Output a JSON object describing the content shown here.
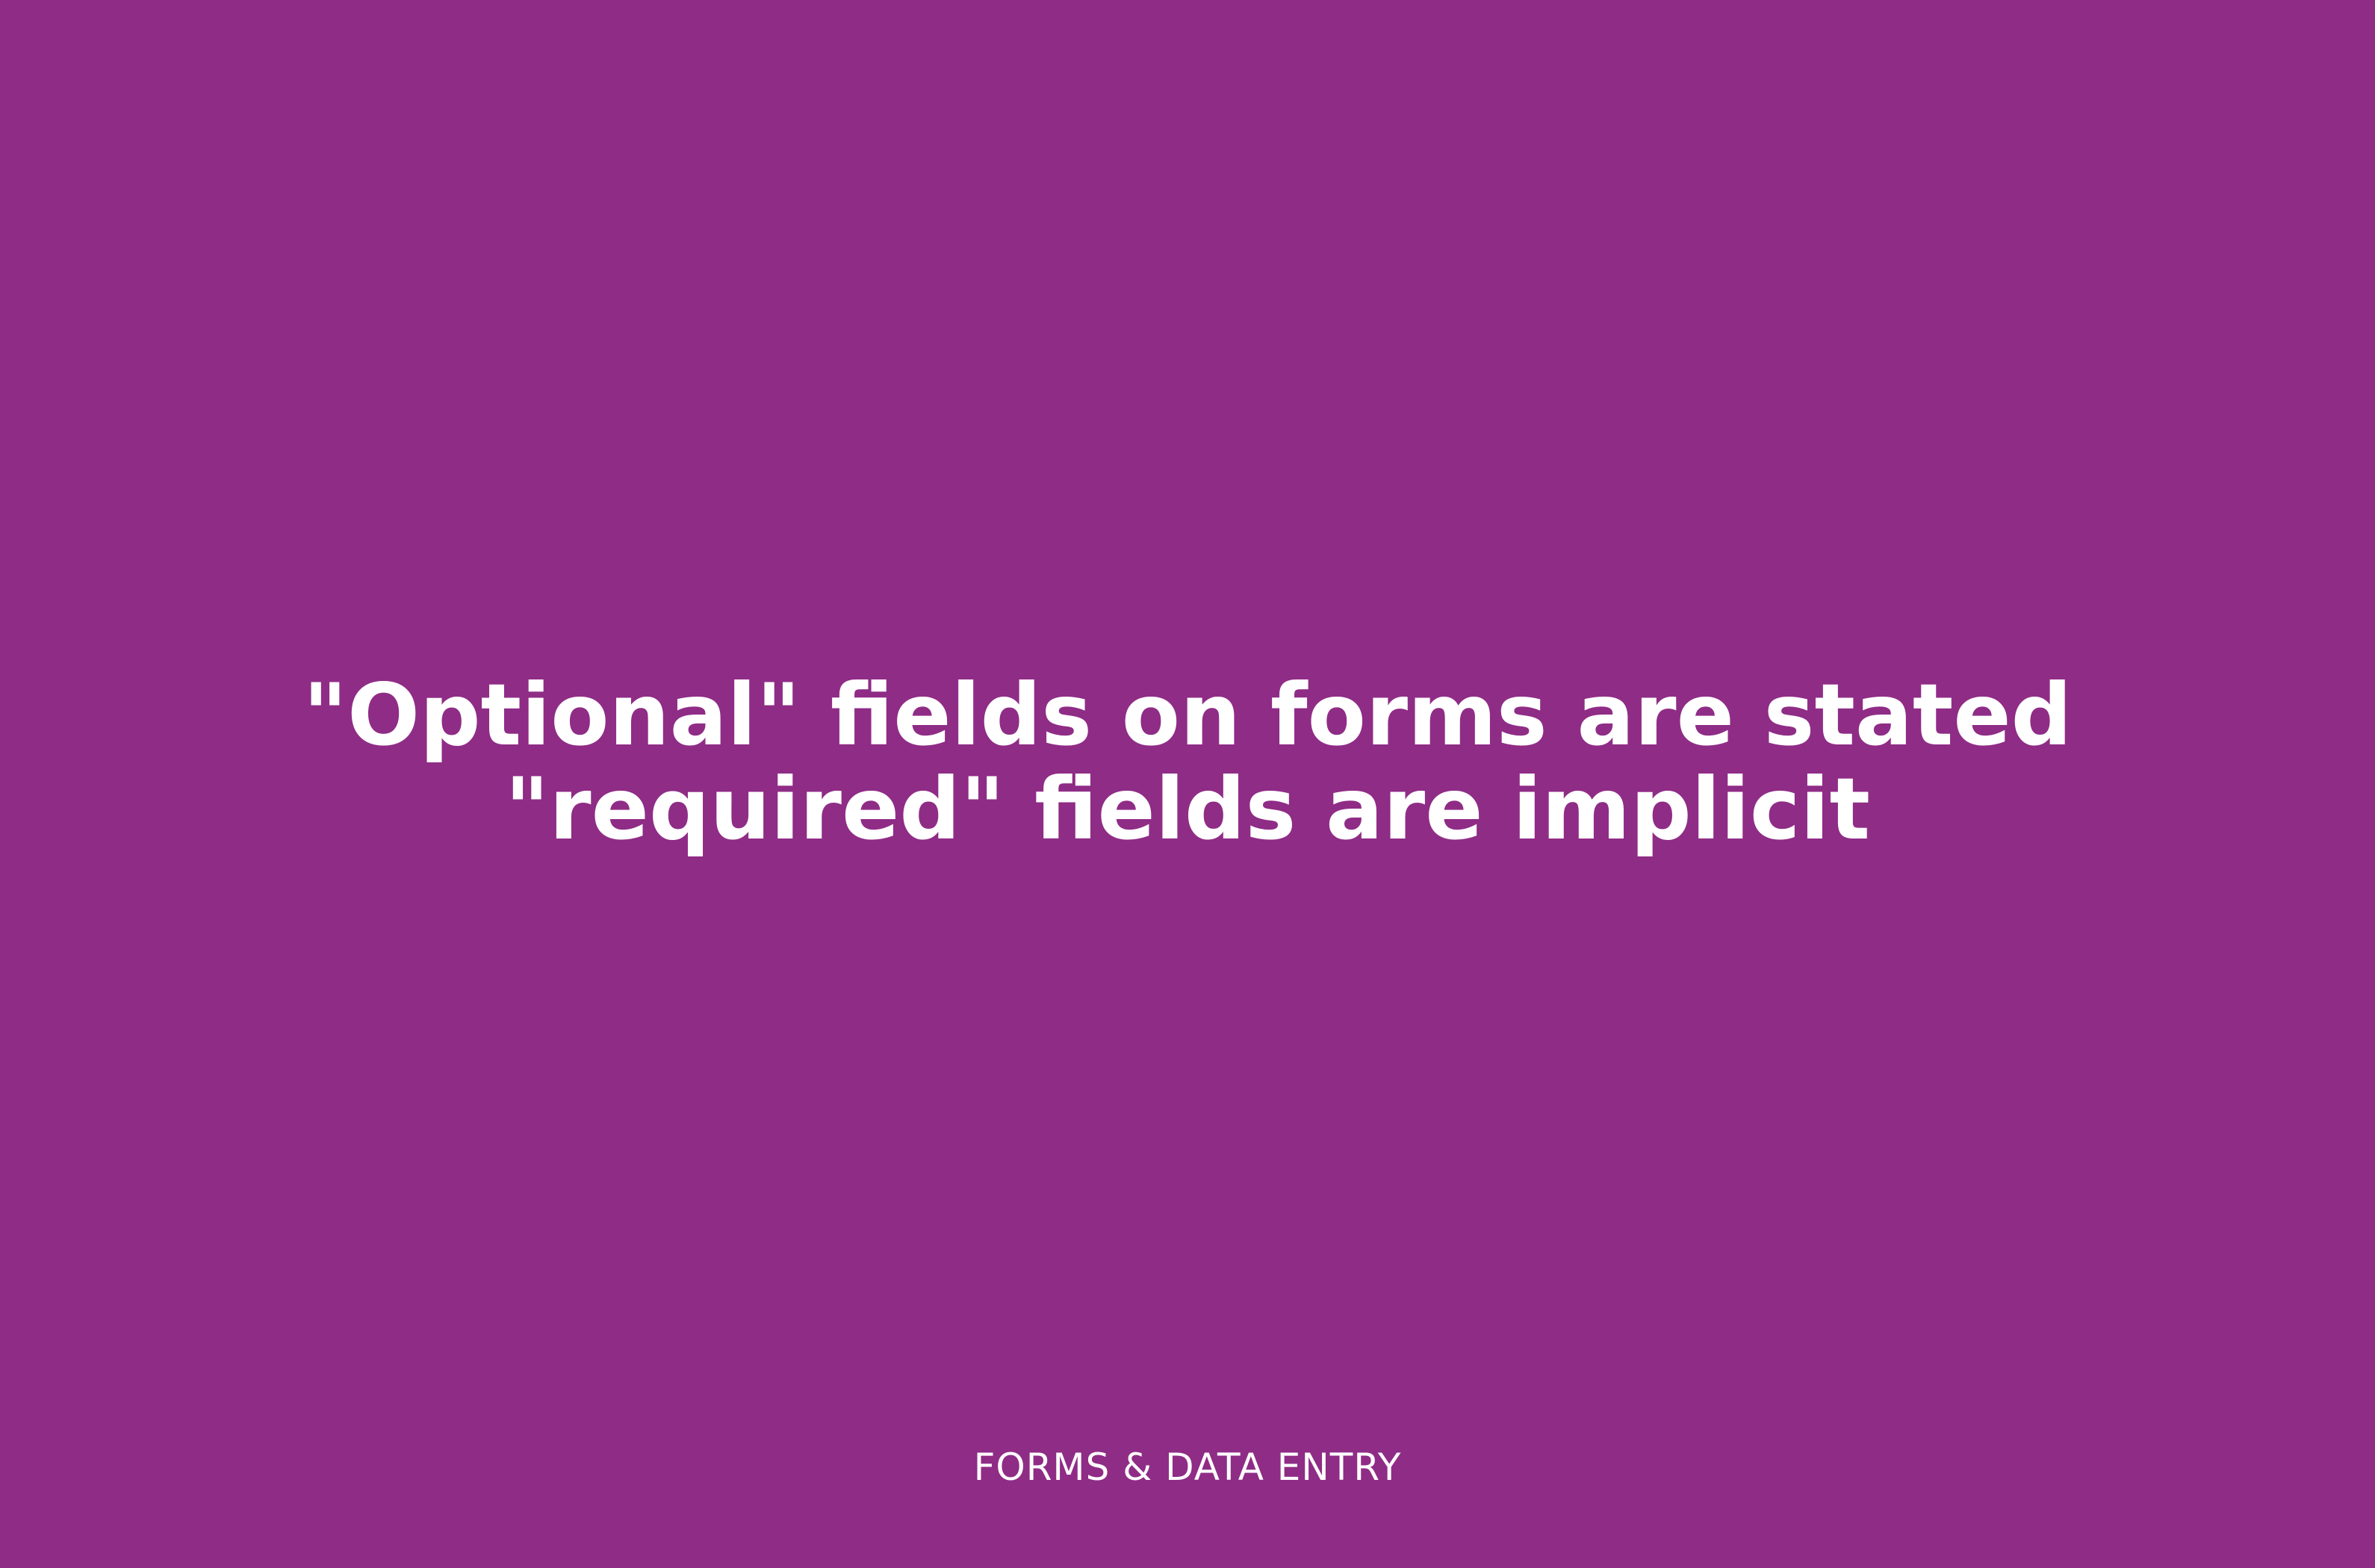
{
  "theme": {
    "background_color": "#8f2c86",
    "text_color": "#ffffff"
  },
  "headline": {
    "line1": "\"Optional\" fields on forms are stated",
    "line2": "\"required\" fields are implicit"
  },
  "footer": {
    "category": "FORMS & DATA ENTRY"
  }
}
